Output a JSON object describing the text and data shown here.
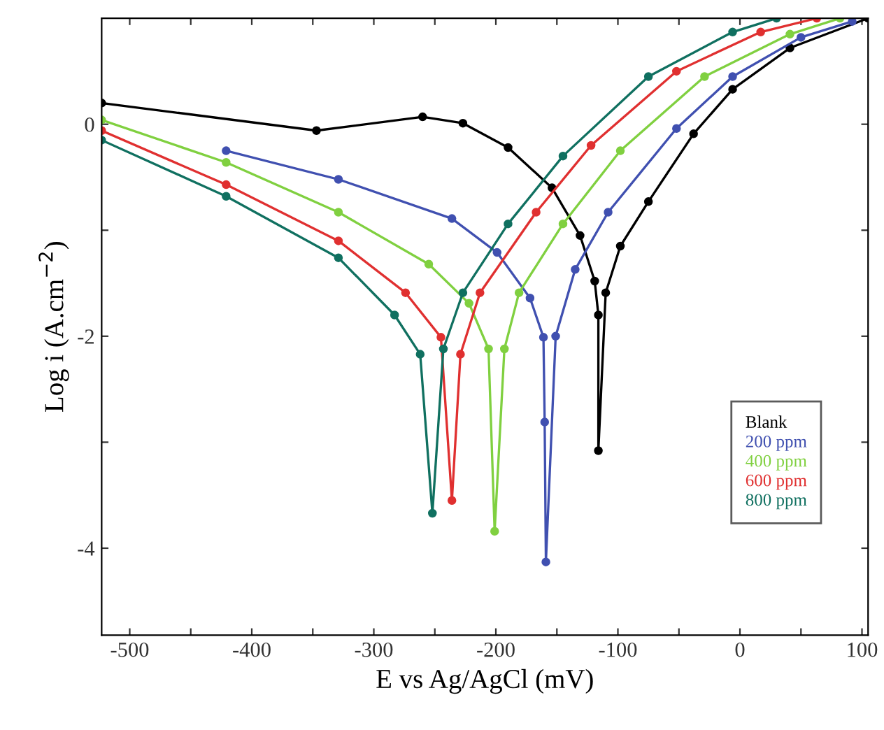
{
  "chart_data": {
    "type": "line",
    "xlabel": "E vs Ag/AgCl (mV)",
    "ylabel": "Log i (A.cm$^{−2}$)",
    "xlim": [
      -523,
      105
    ],
    "ylim": [
      -4.82,
      1.0
    ],
    "xticks": [
      -500,
      {
        "value": -450,
        "label": null
      },
      -400,
      {
        "value": -350,
        "label": null
      },
      -300,
      {
        "value": -250,
        "label": null
      },
      -200,
      {
        "value": -150,
        "label": null
      },
      -100,
      {
        "value": -50,
        "label": null
      },
      0,
      {
        "value": 50,
        "label": null
      },
      100
    ],
    "yticks": [
      -4,
      {
        "value": -3,
        "label": null
      },
      -2,
      {
        "value": -1,
        "label": null
      },
      0
    ],
    "marker": "circle",
    "line_style": "solid",
    "grid": false,
    "legend": "right",
    "series": [
      {
        "name": "Blank",
        "color": "#000000",
        "x": [
          -523,
          -347,
          -260,
          -227,
          -190,
          -154,
          -131,
          -119,
          -116,
          -116,
          -110,
          -98,
          -75,
          -38,
          -6,
          41,
          105
        ],
        "values": [
          0.2,
          -0.06,
          0.07,
          0.01,
          -0.22,
          -0.6,
          -1.05,
          -1.48,
          -1.8,
          -3.08,
          -1.59,
          -1.15,
          -0.73,
          -0.09,
          0.33,
          0.72,
          1.0
        ]
      },
      {
        "name": "200 ppm",
        "color": "#4050b0",
        "x": [
          -421,
          -329,
          -236,
          -199,
          -172,
          -161,
          -160,
          -159,
          -151,
          -135,
          -108,
          -52,
          -6,
          50,
          92
        ],
        "values": [
          -0.25,
          -0.52,
          -0.89,
          -1.21,
          -1.64,
          -2.01,
          -2.81,
          -4.13,
          -2.0,
          -1.37,
          -0.83,
          -0.04,
          0.45,
          0.82,
          0.97
        ]
      },
      {
        "name": "400 ppm",
        "color": "#80d040",
        "x": [
          -523,
          -421,
          -329,
          -255,
          -222,
          -206,
          -201,
          -193,
          -181,
          -145,
          -98,
          -29,
          41,
          82
        ],
        "values": [
          0.04,
          -0.36,
          -0.83,
          -1.32,
          -1.69,
          -2.12,
          -3.84,
          -2.12,
          -1.59,
          -0.94,
          -0.25,
          0.45,
          0.85,
          1.0
        ]
      },
      {
        "name": "600 ppm",
        "color": "#e03030",
        "x": [
          -523,
          -421,
          -329,
          -274,
          -245,
          -236,
          -229,
          -213,
          -167,
          -122,
          -52,
          17,
          63
        ],
        "values": [
          -0.06,
          -0.57,
          -1.1,
          -1.59,
          -2.01,
          -3.55,
          -2.17,
          -1.59,
          -0.83,
          -0.2,
          0.5,
          0.87,
          1.0
        ]
      },
      {
        "name": "800 ppm",
        "color": "#107060",
        "x": [
          -523,
          -421,
          -329,
          -283,
          -262,
          -252,
          -243,
          -227,
          -190,
          -145,
          -75,
          -6,
          30
        ],
        "values": [
          -0.15,
          -0.68,
          -1.26,
          -1.8,
          -2.17,
          -3.67,
          -2.12,
          -1.59,
          -0.94,
          -0.3,
          0.45,
          0.87,
          1.0
        ]
      }
    ]
  }
}
